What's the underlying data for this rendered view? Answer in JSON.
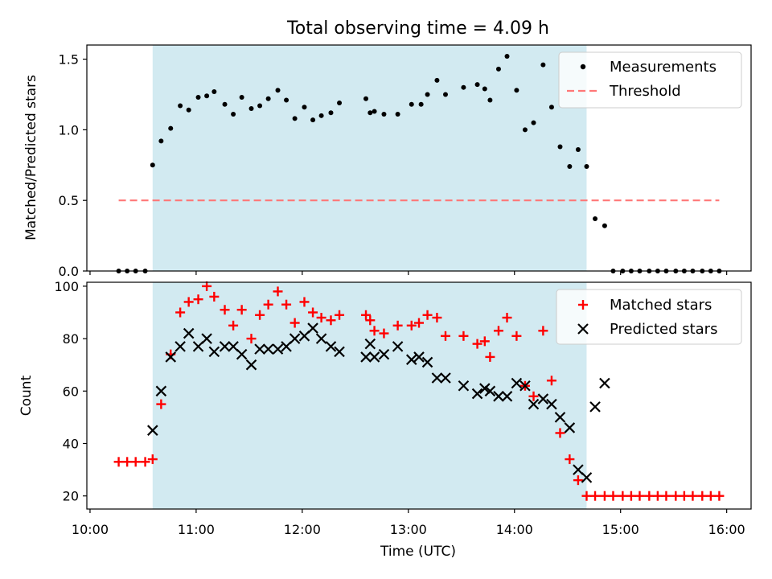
{
  "chart_data": {
    "title": "Total observing time = 4.09 h",
    "xlabel": "Time (UTC)",
    "x_ticks": [
      "10:00",
      "11:00",
      "12:00",
      "13:00",
      "14:00",
      "15:00",
      "16:00"
    ],
    "x_range_hours": [
      9.97,
      16.23
    ],
    "observing_window_hours": [
      10.59,
      14.68
    ],
    "colors": {
      "window": "#add8e6",
      "matched": "#ff0000",
      "predicted": "#000000",
      "threshold": "#ff7777",
      "measurements": "#000000"
    },
    "panels": [
      {
        "type": "scatter",
        "ylabel": "Matched/Predicted stars",
        "ylim": [
          0,
          1.6
        ],
        "y_ticks": [
          "0.0",
          "0.5",
          "1.0",
          "1.5"
        ],
        "y_tick_values": [
          0,
          0.5,
          1.0,
          1.5
        ],
        "legend_position": "top-right",
        "threshold": {
          "name": "Threshold",
          "y": 0.5,
          "x_range": [
            10.27,
            15.93
          ]
        },
        "series": [
          {
            "name": "Measurements",
            "marker": "dot",
            "points": [
              [
                10.27,
                0
              ],
              [
                10.35,
                0
              ],
              [
                10.43,
                0
              ],
              [
                10.52,
                0
              ],
              [
                10.59,
                0.75
              ],
              [
                10.67,
                0.92
              ],
              [
                10.76,
                1.01
              ],
              [
                10.85,
                1.17
              ],
              [
                10.93,
                1.14
              ],
              [
                11.02,
                1.23
              ],
              [
                11.1,
                1.24
              ],
              [
                11.17,
                1.27
              ],
              [
                11.27,
                1.18
              ],
              [
                11.35,
                1.11
              ],
              [
                11.43,
                1.23
              ],
              [
                11.52,
                1.15
              ],
              [
                11.6,
                1.17
              ],
              [
                11.68,
                1.22
              ],
              [
                11.77,
                1.28
              ],
              [
                11.85,
                1.21
              ],
              [
                11.93,
                1.08
              ],
              [
                12.02,
                1.16
              ],
              [
                12.1,
                1.07
              ],
              [
                12.18,
                1.1
              ],
              [
                12.27,
                1.12
              ],
              [
                12.35,
                1.19
              ],
              [
                12.6,
                1.22
              ],
              [
                12.64,
                1.12
              ],
              [
                12.68,
                1.13
              ],
              [
                12.77,
                1.11
              ],
              [
                12.9,
                1.11
              ],
              [
                13.03,
                1.18
              ],
              [
                13.12,
                1.18
              ],
              [
                13.18,
                1.25
              ],
              [
                13.27,
                1.35
              ],
              [
                13.35,
                1.25
              ],
              [
                13.52,
                1.3
              ],
              [
                13.65,
                1.32
              ],
              [
                13.72,
                1.29
              ],
              [
                13.77,
                1.21
              ],
              [
                13.85,
                1.43
              ],
              [
                13.93,
                1.52
              ],
              [
                14.02,
                1.28
              ],
              [
                14.1,
                1.0
              ],
              [
                14.18,
                1.05
              ],
              [
                14.27,
                1.46
              ],
              [
                14.35,
                1.16
              ],
              [
                14.43,
                0.88
              ],
              [
                14.52,
                0.74
              ],
              [
                14.6,
                0.86
              ],
              [
                14.68,
                0.74
              ],
              [
                14.76,
                0.37
              ],
              [
                14.85,
                0.32
              ],
              [
                14.93,
                0
              ],
              [
                15.02,
                0
              ],
              [
                15.1,
                0
              ],
              [
                15.18,
                0
              ],
              [
                15.27,
                0
              ],
              [
                15.35,
                0
              ],
              [
                15.43,
                0
              ],
              [
                15.52,
                0
              ],
              [
                15.6,
                0
              ],
              [
                15.68,
                0
              ],
              [
                15.77,
                0
              ],
              [
                15.85,
                0
              ],
              [
                15.93,
                0
              ]
            ]
          }
        ]
      },
      {
        "type": "scatter",
        "ylabel": "Count",
        "ylim": [
          15,
          101.5
        ],
        "y_ticks": [
          "20",
          "40",
          "60",
          "80",
          "100"
        ],
        "y_tick_values": [
          20,
          40,
          60,
          80,
          100
        ],
        "legend_position": "top-right",
        "series": [
          {
            "name": "Matched stars",
            "marker": "plus",
            "points": [
              [
                10.27,
                33
              ],
              [
                10.35,
                33
              ],
              [
                10.43,
                33
              ],
              [
                10.52,
                33
              ],
              [
                10.59,
                34
              ],
              [
                10.67,
                55
              ],
              [
                10.76,
                74
              ],
              [
                10.85,
                90
              ],
              [
                10.93,
                94
              ],
              [
                11.02,
                95
              ],
              [
                11.1,
                100
              ],
              [
                11.17,
                96
              ],
              [
                11.27,
                91
              ],
              [
                11.35,
                85
              ],
              [
                11.43,
                91
              ],
              [
                11.52,
                80
              ],
              [
                11.6,
                89
              ],
              [
                11.68,
                93
              ],
              [
                11.77,
                98
              ],
              [
                11.85,
                93
              ],
              [
                11.93,
                86
              ],
              [
                12.02,
                94
              ],
              [
                12.1,
                90
              ],
              [
                12.18,
                88
              ],
              [
                12.27,
                87
              ],
              [
                12.35,
                89
              ],
              [
                12.6,
                89
              ],
              [
                12.64,
                87
              ],
              [
                12.68,
                83
              ],
              [
                12.77,
                82
              ],
              [
                12.9,
                85
              ],
              [
                13.03,
                85
              ],
              [
                13.1,
                86
              ],
              [
                13.18,
                89
              ],
              [
                13.27,
                88
              ],
              [
                13.35,
                81
              ],
              [
                13.52,
                81
              ],
              [
                13.65,
                78
              ],
              [
                13.72,
                79
              ],
              [
                13.77,
                73
              ],
              [
                13.85,
                83
              ],
              [
                13.93,
                88
              ],
              [
                14.02,
                81
              ],
              [
                14.1,
                62
              ],
              [
                14.18,
                58
              ],
              [
                14.27,
                83
              ],
              [
                14.35,
                64
              ],
              [
                14.43,
                44
              ],
              [
                14.52,
                34
              ],
              [
                14.6,
                26
              ],
              [
                14.68,
                20
              ],
              [
                14.76,
                20
              ],
              [
                14.85,
                20
              ],
              [
                14.93,
                20
              ],
              [
                15.02,
                20
              ],
              [
                15.1,
                20
              ],
              [
                15.18,
                20
              ],
              [
                15.27,
                20
              ],
              [
                15.35,
                20
              ],
              [
                15.43,
                20
              ],
              [
                15.52,
                20
              ],
              [
                15.6,
                20
              ],
              [
                15.68,
                20
              ],
              [
                15.77,
                20
              ],
              [
                15.85,
                20
              ],
              [
                15.93,
                20
              ]
            ]
          },
          {
            "name": "Predicted stars",
            "marker": "x",
            "points": [
              [
                10.59,
                45
              ],
              [
                10.67,
                60
              ],
              [
                10.76,
                73
              ],
              [
                10.85,
                77
              ],
              [
                10.93,
                82
              ],
              [
                11.02,
                77
              ],
              [
                11.1,
                80
              ],
              [
                11.17,
                75
              ],
              [
                11.27,
                77
              ],
              [
                11.35,
                77
              ],
              [
                11.43,
                74
              ],
              [
                11.52,
                70
              ],
              [
                11.6,
                76
              ],
              [
                11.68,
                76
              ],
              [
                11.77,
                76
              ],
              [
                11.85,
                77
              ],
              [
                11.93,
                80
              ],
              [
                12.02,
                81
              ],
              [
                12.1,
                84
              ],
              [
                12.18,
                80
              ],
              [
                12.27,
                77
              ],
              [
                12.35,
                75
              ],
              [
                12.6,
                73
              ],
              [
                12.64,
                78
              ],
              [
                12.68,
                73
              ],
              [
                12.77,
                74
              ],
              [
                12.9,
                77
              ],
              [
                13.03,
                72
              ],
              [
                13.1,
                73
              ],
              [
                13.18,
                71
              ],
              [
                13.27,
                65
              ],
              [
                13.35,
                65
              ],
              [
                13.52,
                62
              ],
              [
                13.65,
                59
              ],
              [
                13.72,
                61
              ],
              [
                13.77,
                60
              ],
              [
                13.85,
                58
              ],
              [
                13.93,
                58
              ],
              [
                14.02,
                63
              ],
              [
                14.1,
                62
              ],
              [
                14.18,
                55
              ],
              [
                14.27,
                57
              ],
              [
                14.35,
                55
              ],
              [
                14.43,
                50
              ],
              [
                14.52,
                46
              ],
              [
                14.6,
                30
              ],
              [
                14.68,
                27
              ],
              [
                14.76,
                54
              ],
              [
                14.85,
                63
              ]
            ]
          }
        ]
      }
    ]
  }
}
